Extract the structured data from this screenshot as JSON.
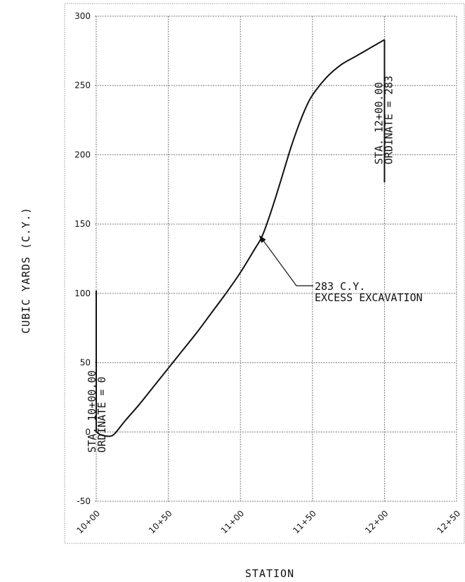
{
  "chart_data": {
    "type": "line",
    "title": "",
    "xlabel": "STATION",
    "ylabel": "CUBIC YARDS (C.Y.)",
    "x_tick_labels": [
      "10+00",
      "10+50",
      "11+00",
      "11+50",
      "12+00",
      "12+50"
    ],
    "x_tick_values": [
      1000,
      1050,
      1100,
      1150,
      1200,
      1250
    ],
    "xlim": [
      1000,
      1250
    ],
    "ylim": [
      -50,
      300
    ],
    "y_ticks": [
      -50,
      0,
      50,
      100,
      150,
      200,
      250,
      300
    ],
    "grid": true,
    "series": [
      {
        "x": [
          1000,
          1003,
          1007,
          1010,
          1013,
          1020,
          1030,
          1040,
          1050,
          1060,
          1070,
          1080,
          1090,
          1100,
          1110,
          1115,
          1120,
          1125,
          1130,
          1135,
          1140,
          1145,
          1150,
          1160,
          1170,
          1180,
          1190,
          1200
        ],
        "y": [
          0,
          -2,
          -3,
          -3,
          -1,
          8,
          20,
          33,
          46,
          59,
          72,
          86,
          100,
          115,
          132,
          141,
          155,
          171,
          188,
          205,
          220,
          233,
          243,
          256,
          265,
          271,
          277,
          283
        ]
      }
    ],
    "annotations": [
      {
        "lines": [
          "STA. 10+00.00",
          "ORDINATE = 0"
        ],
        "x": 1000,
        "marker_y_range": [
          0,
          102
        ]
      },
      {
        "lines": [
          "STA. 12+00.00",
          "ORDINATE = 283"
        ],
        "x": 1200,
        "marker_y_range": [
          180,
          283
        ]
      },
      {
        "lines": [
          "283 C.Y.",
          "EXCESS EXCAVATION"
        ],
        "arrow_to": {
          "x": 1113,
          "y": 142
        }
      }
    ]
  }
}
